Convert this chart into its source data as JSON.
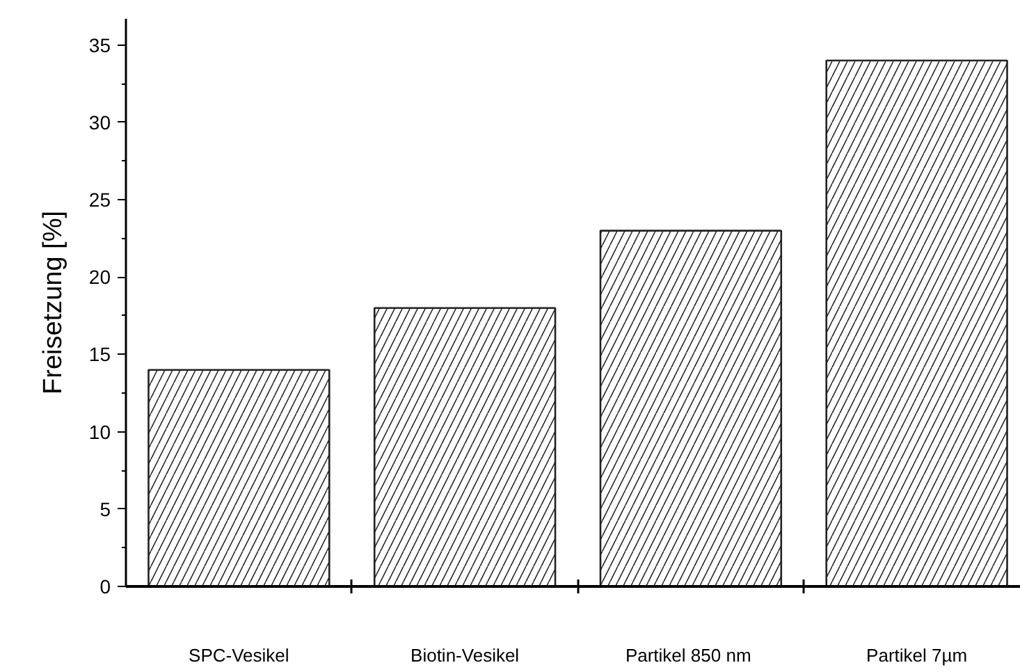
{
  "chart_data": {
    "type": "bar",
    "ylabel": "Freisetzung [%]",
    "categories": [
      "SPC-Vesikel",
      "Biotin-Vesikel",
      "Partikel 850  nm",
      "Partikel 7µm"
    ],
    "values": [
      14,
      18,
      23,
      34
    ],
    "color": "#ffffff",
    "ylim": [
      0,
      36.7
    ],
    "yticks": [
      0,
      5,
      10,
      15,
      20,
      25,
      30,
      35
    ],
    "grid": false
  }
}
